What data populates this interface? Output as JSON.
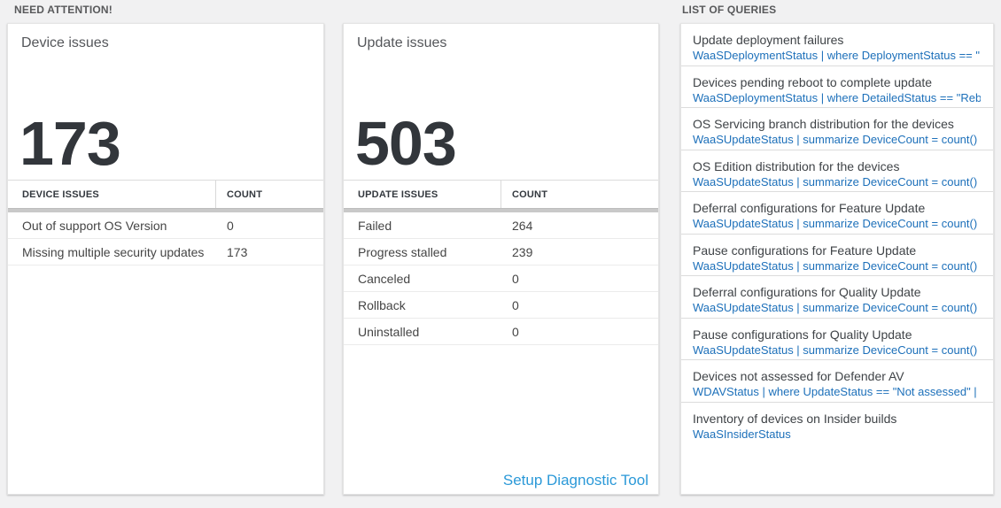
{
  "sections": {
    "need_attention": "NEED ATTENTION!",
    "list_of_queries": "LIST OF QUERIES"
  },
  "device_card": {
    "title": "Device issues",
    "big_number": "173",
    "table": {
      "headers": [
        "DEVICE ISSUES",
        "COUNT"
      ],
      "rows": [
        {
          "label": "Out of support OS Version",
          "count": "0"
        },
        {
          "label": "Missing multiple security updates",
          "count": "173"
        }
      ]
    }
  },
  "update_card": {
    "title": "Update issues",
    "big_number": "503",
    "table": {
      "headers": [
        "UPDATE ISSUES",
        "COUNT"
      ],
      "rows": [
        {
          "label": "Failed",
          "count": "264"
        },
        {
          "label": "Progress stalled",
          "count": "239"
        },
        {
          "label": "Canceled",
          "count": "0"
        },
        {
          "label": "Rollback",
          "count": "0"
        },
        {
          "label": "Uninstalled",
          "count": "0"
        }
      ]
    },
    "footer_link": "Setup Diagnostic Tool"
  },
  "queries": {
    "items": [
      {
        "title": "Update deployment failures",
        "query": "WaaSDeploymentStatus | where DeploymentStatus == \"Failed\" |..."
      },
      {
        "title": "Devices pending reboot to complete update",
        "query": "WaaSDeploymentStatus | where DetailedStatus == \"Reboot pend..."
      },
      {
        "title": "OS Servicing branch distribution for the devices",
        "query": "WaaSUpdateStatus | summarize DeviceCount = count() by OSSer..."
      },
      {
        "title": "OS Edition distribution for the devices",
        "query": "WaaSUpdateStatus | summarize DeviceCount = count() by OSEdit..."
      },
      {
        "title": "Deferral configurations for Feature Update",
        "query": "WaaSUpdateStatus | summarize DeviceCount = count() by Featur..."
      },
      {
        "title": "Pause configurations for Feature Update",
        "query": "WaaSUpdateStatus | summarize DeviceCount = count() by Featur..."
      },
      {
        "title": "Deferral configurations for Quality Update",
        "query": "WaaSUpdateStatus | summarize DeviceCount = count() by Qualit..."
      },
      {
        "title": "Pause configurations for Quality Update",
        "query": "WaaSUpdateStatus | summarize DeviceCount = count() by Qualit..."
      },
      {
        "title": "Devices not assessed for Defender AV",
        "query": "WDAVStatus | where UpdateStatus == \"Not assessed\" | render ta..."
      },
      {
        "title": "Inventory of devices on Insider builds",
        "query": "WaaSInsiderStatus"
      }
    ]
  },
  "colors": {
    "query_link_blue": "#1d70ba",
    "setup_link_blue": "#2b99d8",
    "scrollbar_gray": "#c9c9c9",
    "page_background": "#f1f1f2"
  }
}
